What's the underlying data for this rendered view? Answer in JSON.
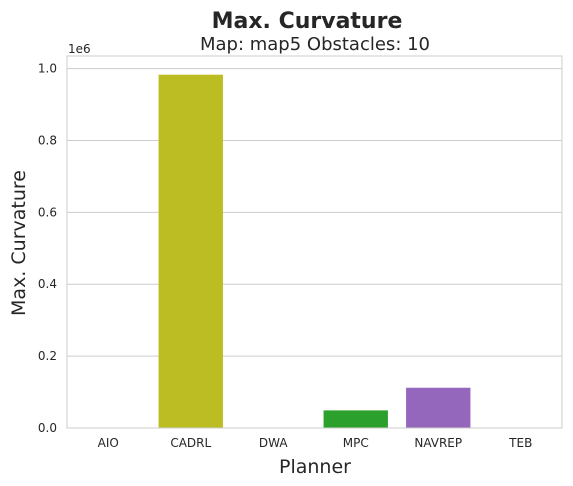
{
  "chart_data": {
    "type": "bar",
    "suptitle": "Max. Curvature",
    "title": "Map: map5 Obstacles: 10",
    "xlabel": "Planner",
    "ylabel": "Max. Curvature",
    "y_offset_label": "1e6",
    "categories": [
      "AIO",
      "CADRL",
      "DWA",
      "MPC",
      "NAVREP",
      "TEB"
    ],
    "values": [
      0,
      983000,
      0,
      49000,
      112000,
      0
    ],
    "colors": [
      "#1f77b4",
      "#bcbd22",
      "#ff7f0e",
      "#2ca02c",
      "#9467bd",
      "#8c564b"
    ],
    "ylim": [
      0,
      1035000
    ],
    "yticks": [
      0,
      200000,
      400000,
      600000,
      800000,
      1000000
    ],
    "ytick_labels": [
      "0.0",
      "0.2",
      "0.4",
      "0.6",
      "0.8",
      "1.0"
    ],
    "grid": true,
    "legend": false
  }
}
